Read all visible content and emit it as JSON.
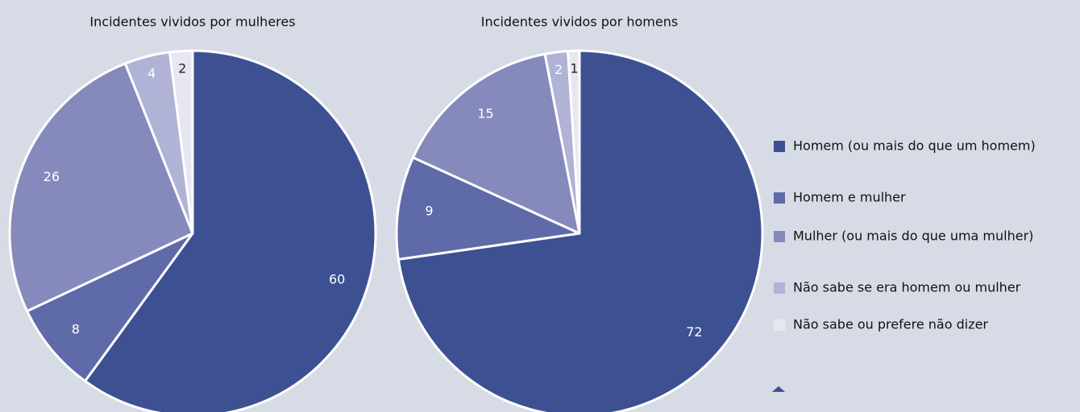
{
  "legend": {
    "labels": [
      "Homem (ou mais do que um homem)",
      "Homem e mulher",
      "Mulher (ou mais do que uma mulher)",
      "Não sabe se era homem ou mulher",
      "Não sabe ou prefere não dizer"
    ],
    "colors": [
      "#3d5192",
      "#5f6aa8",
      "#8689bb",
      "#b0b2d6",
      "#e6e7f1"
    ]
  },
  "chart_data": [
    {
      "type": "pie",
      "title": "Incidentes vividos por mulheres",
      "values": [
        60,
        8,
        26,
        4,
        2
      ]
    },
    {
      "type": "pie",
      "title": "Incidentes vividos por homens",
      "values": [
        72,
        9,
        15,
        2,
        1
      ]
    }
  ]
}
